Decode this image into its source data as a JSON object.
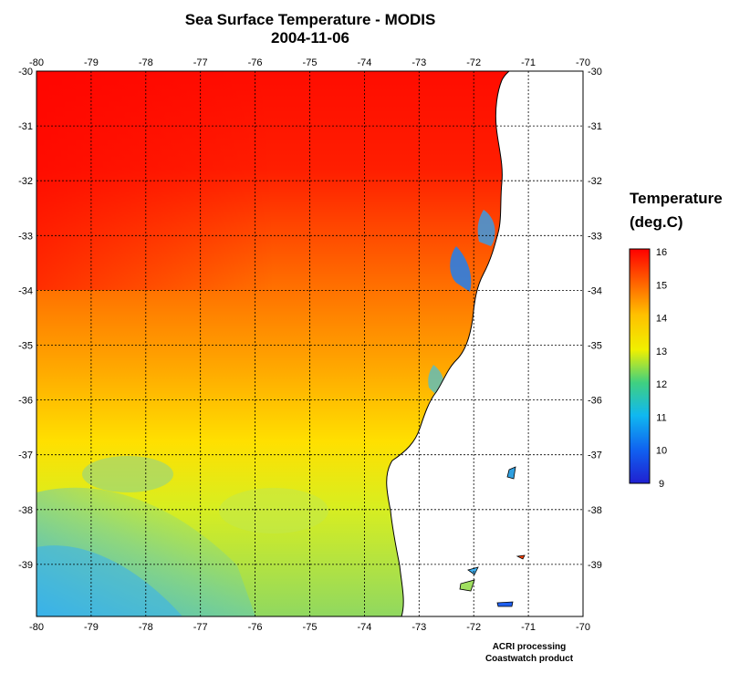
{
  "title": {
    "line1": "Sea Surface Temperature - MODIS",
    "line2": "2004-11-06"
  },
  "legend": {
    "title_line1": "Temperature",
    "title_line2": "(deg.C)",
    "min": 9,
    "max": 16,
    "ticks": [
      "16",
      "15",
      "14",
      "13",
      "12",
      "11",
      "10",
      "9"
    ],
    "colors": [
      "#ff0000",
      "#ff7a00",
      "#ffe600",
      "#a0e050",
      "#20c8e0",
      "#1060f0",
      "#2020d0"
    ]
  },
  "credits": {
    "line1": "ACRI processing",
    "line2": "Coastwatch product"
  },
  "axes": {
    "lon_labels": [
      "-80",
      "-79",
      "-78",
      "-77",
      "-76",
      "-75",
      "-74",
      "-73",
      "-72",
      "-71",
      "-70"
    ],
    "lat_labels": [
      "-30",
      "-31",
      "-32",
      "-33",
      "-34",
      "-35",
      "-36",
      "-37",
      "-38",
      "-39"
    ]
  },
  "colors": {
    "hot": "#ff1200",
    "warm": "#ff7000",
    "mid": "#ffd000",
    "cool": "#a8e048",
    "cold": "#40b8e8",
    "land": "#ffffff",
    "grid": "#000000"
  }
}
